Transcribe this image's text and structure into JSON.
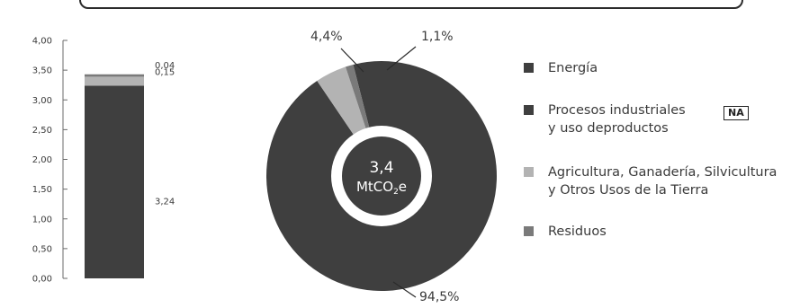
{
  "chart_data": [
    {
      "type": "bar",
      "stacked": true,
      "ylim": [
        0,
        4
      ],
      "ytick_labels": [
        "0,00",
        "0,50",
        "1,00",
        "1,50",
        "2,00",
        "2,50",
        "3,00",
        "3,50",
        "4,00"
      ],
      "yticks": [
        0,
        0.5,
        1,
        1.5,
        2,
        2.5,
        3,
        3.5,
        4
      ],
      "series": [
        {
          "value": 3.24,
          "label": "3,24",
          "color": "#3f3f3f"
        },
        {
          "value": 0.15,
          "label": "0,15",
          "color": "#b3b3b3"
        },
        {
          "value": 0.04,
          "label": "0,04",
          "color": "#7a7a7a"
        }
      ]
    },
    {
      "type": "pie",
      "donut": true,
      "center_line1": "3,4",
      "center_line2": "MtCO",
      "center_sub": "2",
      "center_suffix": "e",
      "slices": [
        {
          "value": 94.5,
          "label": "94,5%",
          "color": "#3f3f3f"
        },
        {
          "value": 4.4,
          "label": "4,4%",
          "color": "#b3b3b3"
        },
        {
          "value": 1.1,
          "label": "1,1%",
          "color": "#7a7a7a"
        }
      ]
    }
  ],
  "legend": [
    {
      "lines": [
        "Energía"
      ],
      "color": "#3f3f3f"
    },
    {
      "lines": [
        "Procesos industriales",
        "y uso deproductos"
      ],
      "color": "#3f3f3f",
      "badge": "NA"
    },
    {
      "lines": [
        "Agricultura, Ganadería, Silvicultura",
        "y Otros Usos de la Tierra"
      ],
      "color": "#b3b3b3"
    },
    {
      "lines": [
        "Residuos"
      ],
      "color": "#7a7a7a"
    }
  ]
}
